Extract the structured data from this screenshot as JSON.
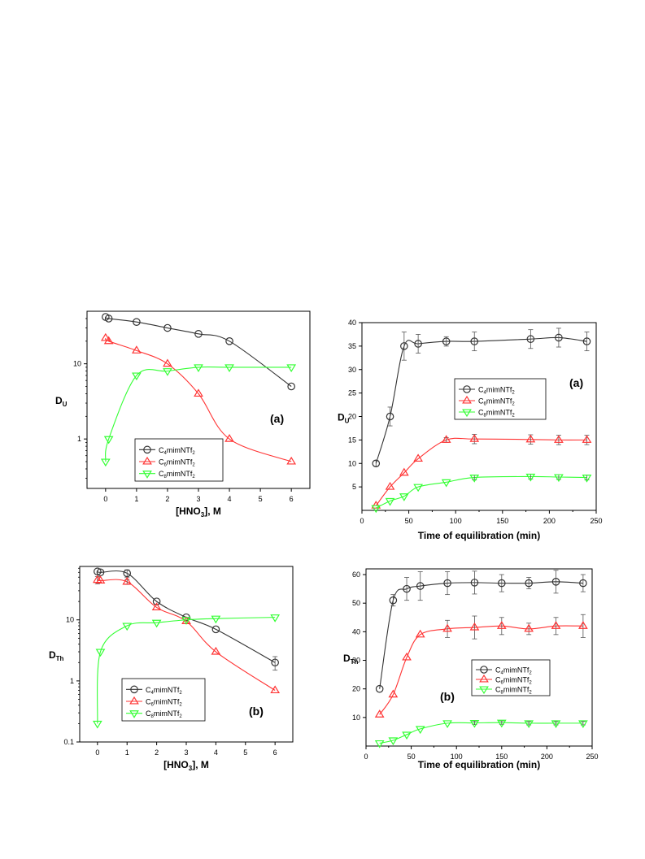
{
  "colors": {
    "C4": "#333333",
    "C6": "#ff3333",
    "C8": "#33ff33",
    "axis": "#000000"
  },
  "chart_data": [
    {
      "id": "du-hno3",
      "type": "line",
      "panel_label": "(a)",
      "xlabel_main": "[HNO",
      "xlabel_sub": "3",
      "xlabel_tail": "], M",
      "ylabel_main": "D",
      "ylabel_sub": "U",
      "yscale": "log",
      "xlim": [
        -0.6,
        6.6
      ],
      "ylim": [
        0.22,
        50
      ],
      "x_ticks": [
        "0",
        "1",
        "2",
        "3",
        "4",
        "5",
        "6"
      ],
      "y_ticks": [
        "1",
        "10"
      ],
      "legend_position": "bottom-left",
      "series": [
        {
          "key": "C4",
          "marker": "circle",
          "label_main": "C",
          "label_sub": "4",
          "label_tail": "mimNTf",
          "label_tail_sub": "2",
          "x": [
            0,
            0.1,
            1,
            2,
            3,
            4,
            6
          ],
          "y": [
            42,
            40,
            36,
            30,
            25,
            20,
            5
          ]
        },
        {
          "key": "C6",
          "marker": "triangle-up",
          "label_main": "C",
          "label_sub": "6",
          "label_tail": "mimNTf",
          "label_tail_sub": "2",
          "x": [
            0,
            0.1,
            1,
            2,
            3,
            4,
            6
          ],
          "y": [
            22,
            20,
            15,
            10,
            4,
            1,
            0.5
          ]
        },
        {
          "key": "C8",
          "marker": "triangle-down",
          "label_main": "C",
          "label_sub": "8",
          "label_tail": "mimNTf",
          "label_tail_sub": "2",
          "x": [
            0,
            0.1,
            1,
            2,
            3,
            4,
            6
          ],
          "y": [
            0.5,
            1,
            7,
            8,
            9,
            9,
            9
          ]
        }
      ]
    },
    {
      "id": "du-time",
      "type": "line",
      "panel_label": "(a)",
      "xlabel_main": "Time of equilibration (min)",
      "ylabel_main": "D",
      "ylabel_sub": "U",
      "yscale": "linear",
      "xlim": [
        0,
        250
      ],
      "ylim": [
        0,
        40
      ],
      "x_ticks": [
        "0",
        "50",
        "100",
        "150",
        "200",
        "250"
      ],
      "y_ticks": [
        "5",
        "10",
        "15",
        "20",
        "25",
        "30",
        "35",
        "40"
      ],
      "legend_position": "center-right",
      "series": [
        {
          "key": "C4",
          "marker": "circle",
          "label_main": "C",
          "label_sub": "4",
          "label_tail": "mimNTf",
          "label_tail_sub": "2",
          "x": [
            15,
            30,
            45,
            60,
            90,
            120,
            180,
            210,
            240
          ],
          "y": [
            10,
            20,
            35,
            35.5,
            36,
            36,
            36.5,
            36.8,
            36
          ],
          "err": [
            0.6,
            2,
            3,
            2,
            1,
            2,
            2,
            2,
            2
          ]
        },
        {
          "key": "C6",
          "marker": "triangle-up",
          "label_main": "C",
          "label_sub": "6",
          "label_tail": "mimNTf",
          "label_tail_sub": "2",
          "x": [
            15,
            30,
            45,
            60,
            90,
            120,
            180,
            210,
            240
          ],
          "y": [
            1,
            5,
            8,
            11,
            15,
            15.2,
            15.1,
            15,
            15
          ],
          "err": [
            0,
            0,
            0,
            0,
            0.5,
            1,
            1,
            1,
            1
          ]
        },
        {
          "key": "C8",
          "marker": "triangle-down",
          "label_main": "C",
          "label_sub": "8",
          "label_tail": "mimNTf",
          "label_tail_sub": "2",
          "x": [
            15,
            30,
            45,
            60,
            90,
            120,
            180,
            210,
            240
          ],
          "y": [
            0.5,
            2,
            3,
            5,
            6,
            7,
            7.2,
            7.1,
            7
          ],
          "err": [
            0,
            0,
            0,
            0,
            0,
            0.5,
            0.5,
            0.5,
            0.5
          ]
        }
      ]
    },
    {
      "id": "dth-hno3",
      "type": "line",
      "panel_label": "(b)",
      "xlabel_main": "[HNO",
      "xlabel_sub": "3",
      "xlabel_tail": "], M",
      "ylabel_main": "D",
      "ylabel_sub": "Th",
      "yscale": "log",
      "xlim": [
        -0.6,
        6.6
      ],
      "ylim": [
        0.1,
        75
      ],
      "x_ticks": [
        "0",
        "1",
        "2",
        "3",
        "4",
        "5",
        "6"
      ],
      "y_ticks": [
        "0.1",
        "1",
        "10"
      ],
      "legend_position": "bottom-left",
      "series": [
        {
          "key": "C4",
          "marker": "circle",
          "label_main": "C",
          "label_sub": "4",
          "label_tail": "mimNTf",
          "label_tail_sub": "2",
          "x": [
            0,
            0.1,
            1,
            2,
            3,
            4,
            6
          ],
          "y": [
            62,
            60,
            58,
            20,
            11,
            7,
            2
          ],
          "err": [
            0,
            0,
            8,
            0,
            0,
            0,
            0.5
          ]
        },
        {
          "key": "C6",
          "marker": "triangle-up",
          "label_main": "C",
          "label_sub": "6",
          "label_tail": "mimNTf",
          "label_tail_sub": "2",
          "x": [
            0,
            0.1,
            1,
            2,
            3,
            4,
            6
          ],
          "y": [
            45,
            44,
            42,
            16,
            9.5,
            3,
            0.7
          ],
          "err": [
            6,
            0,
            4,
            0,
            0,
            0,
            0
          ]
        },
        {
          "key": "C8",
          "marker": "triangle-down",
          "label_main": "C",
          "label_sub": "8",
          "label_tail": "mimNTf",
          "label_tail_sub": "2",
          "x": [
            0,
            0.1,
            1,
            2,
            3,
            4,
            6
          ],
          "y": [
            0.2,
            3,
            8,
            9,
            10,
            10.5,
            11
          ]
        }
      ]
    },
    {
      "id": "dth-time",
      "type": "line",
      "panel_label": "(b)",
      "xlabel_main": "Time of equilibration (min)",
      "ylabel_main": "D",
      "ylabel_sub": "Th",
      "yscale": "linear",
      "xlim": [
        0,
        250
      ],
      "ylim": [
        0,
        62
      ],
      "x_ticks": [
        "0",
        "50",
        "100",
        "150",
        "200",
        "250"
      ],
      "y_ticks": [
        "10",
        "20",
        "30",
        "40",
        "50",
        "60"
      ],
      "legend_position": "center-right",
      "series": [
        {
          "key": "C4",
          "marker": "circle",
          "label_main": "C",
          "label_sub": "4",
          "label_tail": "mimNTf",
          "label_tail_sub": "2",
          "x": [
            15,
            30,
            45,
            60,
            90,
            120,
            150,
            180,
            210,
            240
          ],
          "y": [
            20,
            51,
            55,
            56,
            57,
            57.2,
            57,
            57,
            57.5,
            57
          ],
          "err": [
            0,
            2,
            4,
            5,
            4,
            4,
            3,
            2,
            4,
            3
          ]
        },
        {
          "key": "C6",
          "marker": "triangle-up",
          "label_main": "C",
          "label_sub": "6",
          "label_tail": "mimNTf",
          "label_tail_sub": "2",
          "x": [
            15,
            30,
            45,
            60,
            90,
            120,
            150,
            180,
            210,
            240
          ],
          "y": [
            11,
            18,
            31,
            39,
            41,
            41.5,
            42,
            41,
            42,
            42
          ],
          "err": [
            0,
            0,
            0,
            0,
            3,
            4,
            3,
            2,
            3,
            4
          ]
        },
        {
          "key": "C8",
          "marker": "triangle-down",
          "label_main": "C",
          "label_sub": "8",
          "label_tail": "mimNTf",
          "label_tail_sub": "2",
          "x": [
            15,
            30,
            45,
            60,
            90,
            120,
            150,
            180,
            210,
            240
          ],
          "y": [
            1,
            2,
            4,
            6,
            8,
            8.1,
            8.2,
            8,
            8,
            8
          ],
          "err": [
            0,
            0,
            0,
            0,
            0,
            0.6,
            0.6,
            0.6,
            0.6,
            0.6
          ]
        }
      ]
    }
  ]
}
